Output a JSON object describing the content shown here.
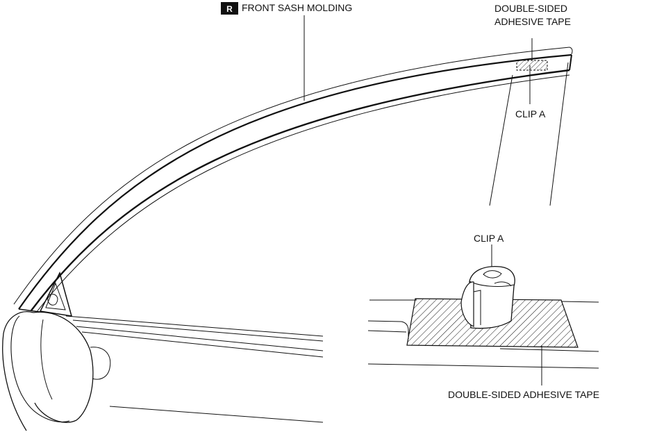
{
  "labels": {
    "side_badge": "R",
    "front_sash_molding": "FRONT SASH MOLDING",
    "double_sided_tape_top_line1": "DOUBLE-SIDED",
    "double_sided_tape_top_line2": "ADHESIVE TAPE",
    "clip_a_upper": "CLIP A",
    "clip_a_detail": "CLIP A",
    "double_sided_tape_bottom": "DOUBLE-SIDED ADHESIVE TAPE"
  },
  "colors": {
    "line": "#111111",
    "badge_fill": "#111111",
    "background": "#ffffff"
  }
}
